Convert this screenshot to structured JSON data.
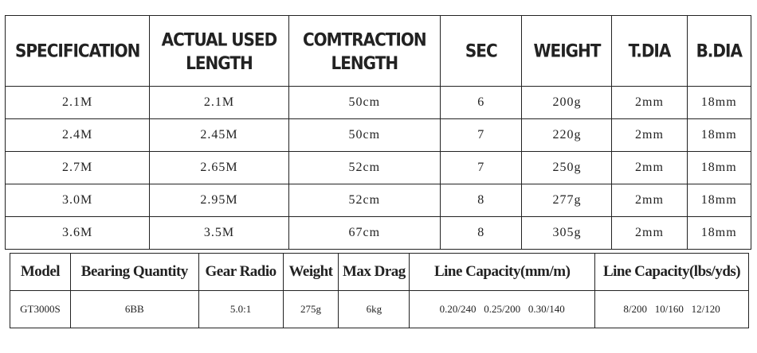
{
  "spec_table": {
    "header": [
      "SPECIFICATION",
      "ACTUAL USED LENGTH",
      "COMTRACTION LENGTH",
      "SEC",
      "WEIGHT",
      "T.DIA",
      "B.DIA"
    ],
    "rows": [
      [
        "2.1M",
        "2.1M",
        "50cm",
        "6",
        "200g",
        "2mm",
        "18mm"
      ],
      [
        "2.4M",
        "2.45M",
        "50cm",
        "7",
        "220g",
        "2mm",
        "18mm"
      ],
      [
        "2.7M",
        "2.65M",
        "52cm",
        "7",
        "250g",
        "2mm",
        "18mm"
      ],
      [
        "3.0M",
        "2.95M",
        "52cm",
        "8",
        "277g",
        "2mm",
        "18mm"
      ],
      [
        "3.6M",
        "3.5M",
        "67cm",
        "8",
        "305g",
        "2mm",
        "18mm"
      ]
    ]
  },
  "reel_table": {
    "header": [
      "Model",
      "Bearing Quantity",
      "Gear Radio",
      "Weight",
      "Max Drag",
      "Line Capacity(mm/m)",
      "Line Capacity(lbs/yds)"
    ],
    "rows": [
      [
        "GT3000S",
        "6BB",
        "5.0:1",
        "275g",
        "6kg",
        "0.20/240   0.25/200   0.30/140",
        "8/200   10/160   12/120"
      ]
    ]
  }
}
